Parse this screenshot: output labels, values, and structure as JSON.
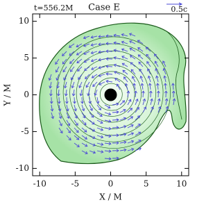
{
  "chart_data": {
    "type": "vector-field",
    "title": "Case E",
    "annotations": [
      "t=556.2M",
      "0.5c"
    ],
    "xlabel": "X / M",
    "ylabel": "Y / M",
    "xlim": [
      -11,
      11
    ],
    "ylim": [
      -11,
      11
    ],
    "xticks": [
      -10,
      -5,
      0,
      5,
      10
    ],
    "yticks": [
      -10,
      -5,
      0,
      5,
      10
    ]
  }
}
